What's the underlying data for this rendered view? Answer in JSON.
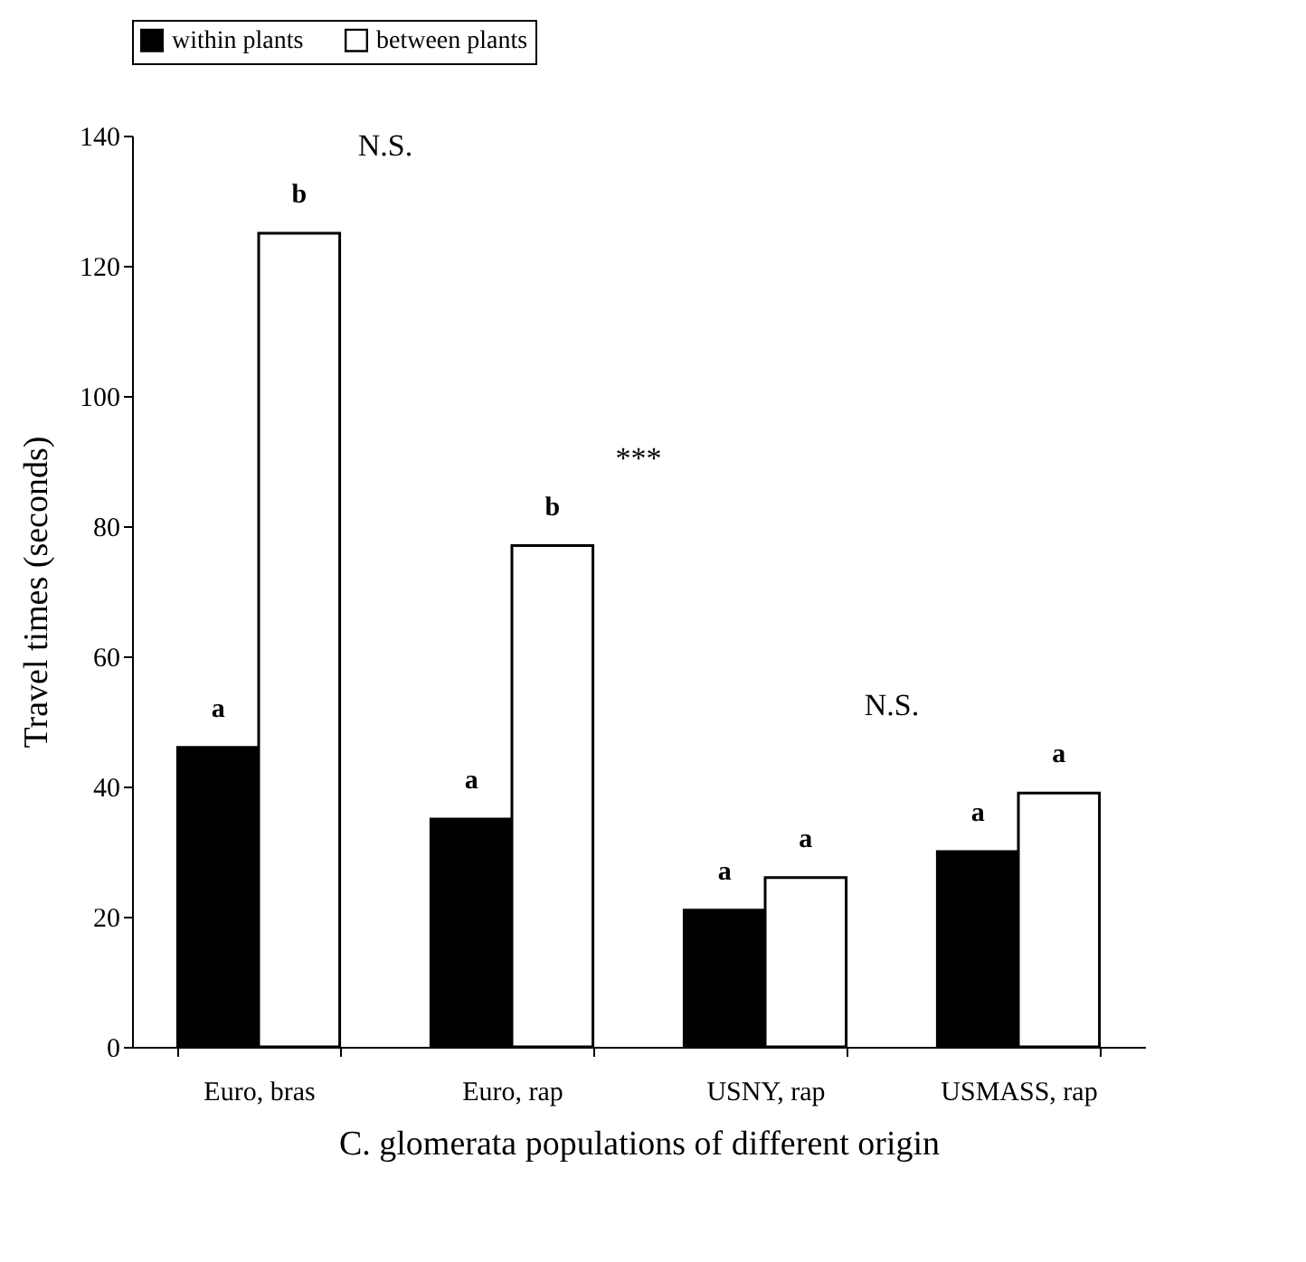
{
  "chart_data": {
    "type": "bar",
    "xlabel": "C. glomerata populations of different origin",
    "ylabel": "Travel times (seconds)",
    "categories": [
      "Euro, bras",
      "Euro, rap",
      "USNY, rap",
      "USMASS, rap"
    ],
    "series": [
      {
        "name": "within plants",
        "color": "#000000",
        "values": [
          46,
          35,
          21,
          30
        ],
        "value_labels": [
          "a",
          "a",
          "a",
          "a"
        ]
      },
      {
        "name": "between plants",
        "color": "#ffffff",
        "values": [
          125,
          77,
          26,
          39
        ],
        "value_labels": [
          "b",
          "b",
          "a",
          "a"
        ]
      }
    ],
    "ylim": [
      0,
      140
    ],
    "yticks": [
      0,
      20,
      40,
      60,
      80,
      100,
      120,
      140
    ],
    "grid": false,
    "legend": "top",
    "annotations": [
      "N.S.",
      "***",
      "N.S."
    ]
  }
}
